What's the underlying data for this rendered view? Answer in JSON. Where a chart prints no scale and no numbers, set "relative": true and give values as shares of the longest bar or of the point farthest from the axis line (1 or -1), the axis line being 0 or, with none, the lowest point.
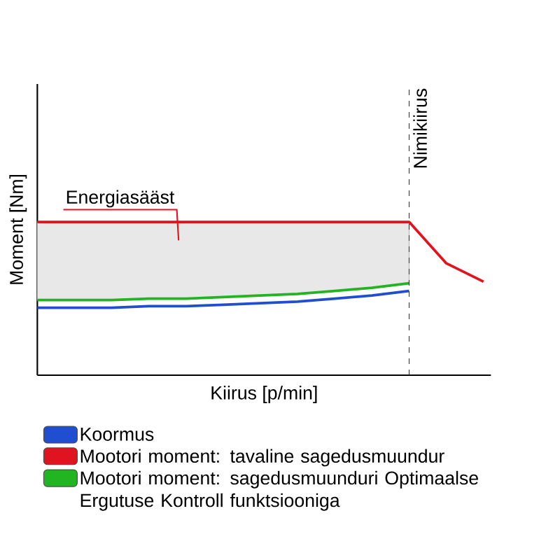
{
  "chart_data": {
    "type": "line",
    "relative": true,
    "xlabel": "Kiirus [p/min]",
    "ylabel": "Moment [Nm]",
    "categories": [
      null,
      null,
      null,
      null,
      null,
      null,
      null,
      null,
      null,
      null,
      null,
      null,
      null
    ],
    "series": [
      {
        "name": "Koormus",
        "color": "#1f4fd0",
        "values": [
          0.44,
          0.44,
          0.44,
          0.45,
          0.45,
          0.46,
          0.47,
          0.48,
          0.5,
          0.52,
          0.55,
          null,
          null
        ]
      },
      {
        "name": "Mootori moment: tavaline sagedusmuundur",
        "color": "#e0141e",
        "values": [
          1,
          1,
          1,
          1,
          1,
          1,
          1,
          1,
          1,
          1,
          1,
          0.73,
          0.61
        ],
        "lower": [
          0.49,
          0.49,
          0.49,
          0.5,
          0.5,
          0.51,
          0.52,
          0.53,
          0.55,
          0.57,
          0.6,
          null,
          null
        ],
        "upper": [
          1,
          1,
          1,
          1,
          1,
          1,
          1,
          1,
          1,
          1,
          1,
          null,
          null
        ]
      },
      {
        "name": "Mootori moment: sagedusmuunduri Optimaalse Ergutuse Kontroll funktsiooniga",
        "color": "#22b522",
        "values": [
          0.49,
          0.49,
          0.49,
          0.5,
          0.5,
          0.51,
          0.52,
          0.53,
          0.55,
          0.57,
          0.6,
          null,
          null
        ]
      }
    ],
    "annotations": [
      "Energiasääst",
      "Nimikiirus"
    ],
    "legend": "bottom",
    "marker": "none",
    "line_style": "solid"
  }
}
